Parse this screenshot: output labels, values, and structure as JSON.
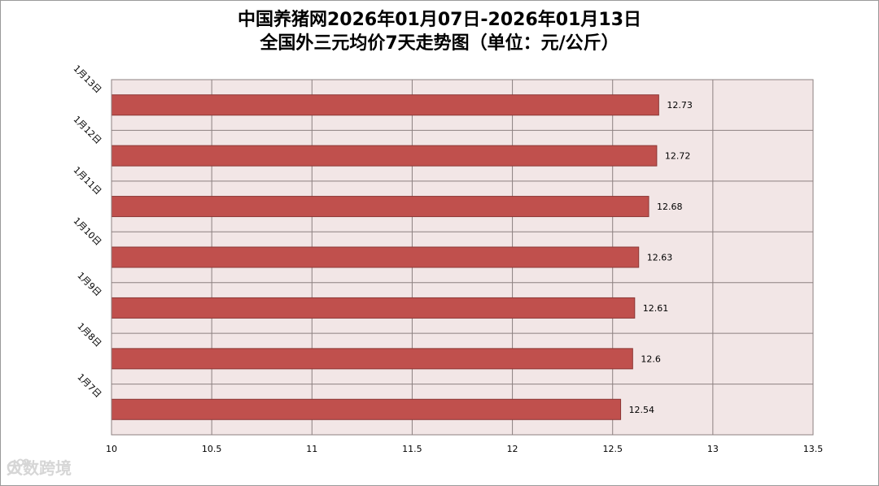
{
  "chart_data": {
    "type": "bar",
    "orientation": "horizontal",
    "title": "中国养猪网2026年01月07日-2026年01月13日",
    "subtitle": "全国外三元均价7天走势图（单位：元/公斤）",
    "categories": [
      "1月13日",
      "1月12日",
      "1月11日",
      "1月10日",
      "1月9日",
      "1月8日",
      "1月7日"
    ],
    "values": [
      12.73,
      12.72,
      12.68,
      12.63,
      12.61,
      12.6,
      12.54
    ],
    "data_labels": [
      "12.73",
      "12.72",
      "12.68",
      "12.63",
      "12.61",
      "12.6",
      "12.54"
    ],
    "x_ticks": [
      "10",
      "10.5",
      "11",
      "11.5",
      "12",
      "12.5",
      "13",
      "13.5"
    ],
    "xlim": [
      10,
      13.5
    ],
    "grid": true,
    "colors": {
      "bar": "#c0504d",
      "bar_edge": "#8c3836",
      "plot_bg": "#f2e6e6",
      "grid": "#8c8080"
    }
  },
  "watermark": {
    "text": "大数跨境",
    "icon": "brand-logo-icon"
  }
}
